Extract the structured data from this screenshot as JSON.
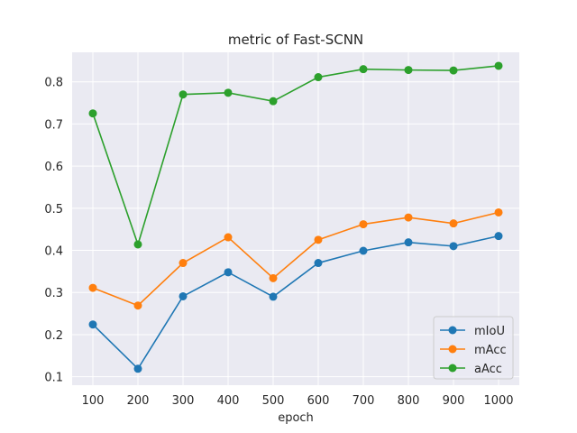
{
  "chart_data": {
    "type": "line",
    "title": "metric of Fast-SCNN",
    "xlabel": "epoch",
    "ylabel": "",
    "x": [
      100,
      200,
      300,
      400,
      500,
      600,
      700,
      800,
      900,
      1000
    ],
    "x_tick_labels": [
      "100",
      "200",
      "300",
      "400",
      "500",
      "600",
      "700",
      "800",
      "900",
      "1000"
    ],
    "ylim": [
      0.08,
      0.87
    ],
    "y_ticks": [
      0.1,
      0.2,
      0.3,
      0.4,
      0.5,
      0.6,
      0.7,
      0.8
    ],
    "y_tick_labels": [
      "0.1",
      "0.2",
      "0.3",
      "0.4",
      "0.5",
      "0.6",
      "0.7",
      "0.8"
    ],
    "grid": true,
    "legend_position": "bottom-right",
    "series": [
      {
        "name": "mIoU",
        "color": "#1f77b4",
        "values": [
          0.224,
          0.119,
          0.291,
          0.348,
          0.29,
          0.37,
          0.399,
          0.419,
          0.41,
          0.434
        ]
      },
      {
        "name": "mAcc",
        "color": "#ff7f0e",
        "values": [
          0.311,
          0.269,
          0.37,
          0.431,
          0.334,
          0.425,
          0.462,
          0.478,
          0.464,
          0.49
        ]
      },
      {
        "name": "aAcc",
        "color": "#2ca02c",
        "values": [
          0.725,
          0.414,
          0.77,
          0.774,
          0.754,
          0.811,
          0.83,
          0.828,
          0.827,
          0.838
        ]
      }
    ]
  }
}
